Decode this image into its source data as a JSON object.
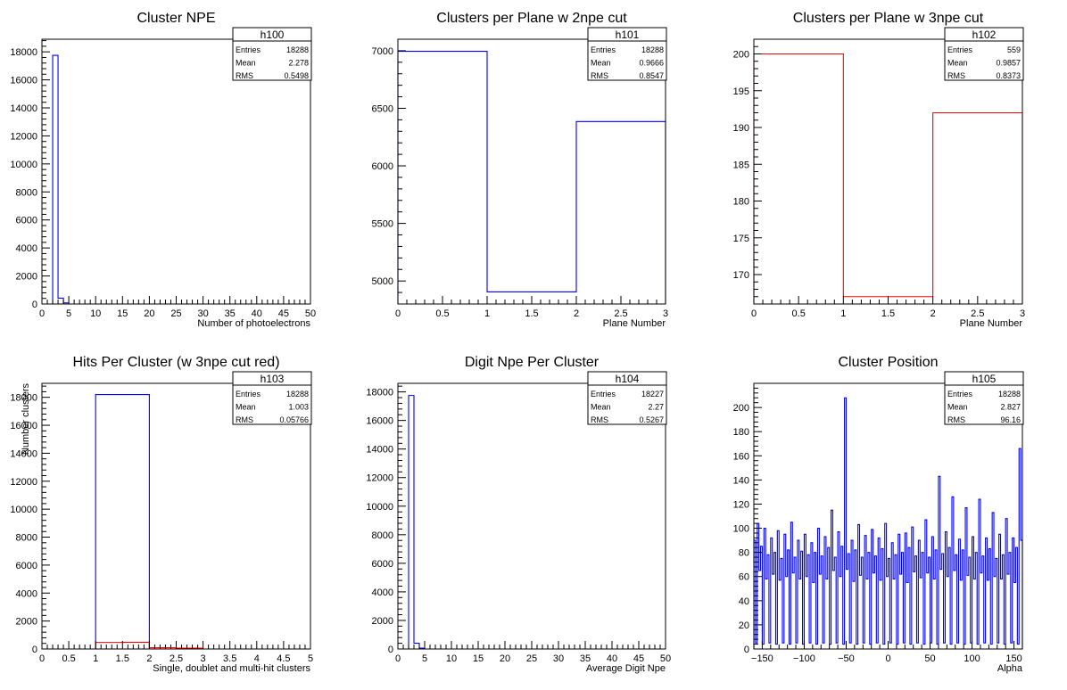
{
  "chart_data": [
    {
      "type": "bar",
      "name": "h100",
      "title": "Cluster NPE",
      "xlabel": "Number of photoelectrons",
      "ylabel": "",
      "xlim": [
        0,
        50
      ],
      "ylim": [
        0,
        18900
      ],
      "xticks": [
        0,
        5,
        10,
        15,
        20,
        25,
        30,
        35,
        40,
        45,
        50
      ],
      "xtick_labels": [
        "0",
        "5",
        "10",
        "15",
        "20",
        "25",
        "30",
        "35",
        "40",
        "45",
        "50"
      ],
      "yticks": [
        0,
        2000,
        4000,
        6000,
        8000,
        10000,
        12000,
        14000,
        16000,
        18000
      ],
      "ytick_labels": [
        "0",
        "2000",
        "4000",
        "6000",
        "8000",
        "10000",
        "12000",
        "14000",
        "16000",
        "18000"
      ],
      "stats": [
        {
          "label": "Entries",
          "value": "18288"
        },
        {
          "label": "Mean",
          "value": "2.278"
        },
        {
          "label": "RMS",
          "value": "0.5498"
        }
      ],
      "series": [
        {
          "color": "#0000ff",
          "bin_edges": [
            0,
            2,
            3,
            4,
            5,
            50
          ],
          "values": [
            0,
            17750,
            420,
            80,
            0
          ]
        }
      ]
    },
    {
      "type": "bar",
      "name": "h101",
      "title": "Clusters per Plane w 2npe cut",
      "xlabel": "Plane Number",
      "ylabel": "",
      "xlim": [
        0,
        3
      ],
      "ylim": [
        4800,
        7100
      ],
      "xticks": [
        0,
        0.5,
        1,
        1.5,
        2,
        2.5,
        3
      ],
      "xtick_labels": [
        "0",
        "0.5",
        "1",
        "1.5",
        "2",
        "2.5",
        "3"
      ],
      "yticks": [
        5000,
        5500,
        6000,
        6500,
        7000
      ],
      "ytick_labels": [
        "5000",
        "5500",
        "6000",
        "6500",
        "7000"
      ],
      "stats": [
        {
          "label": "Entries",
          "value": "18288"
        },
        {
          "label": "Mean",
          "value": "0.9666"
        },
        {
          "label": "RMS",
          "value": "0.8547"
        }
      ],
      "series": [
        {
          "color": "#0000ff",
          "bin_edges": [
            0,
            1,
            2,
            3
          ],
          "values": [
            6995,
            4905,
            6385
          ]
        }
      ]
    },
    {
      "type": "bar",
      "name": "h102",
      "title": "Clusters per Plane w 3npe cut",
      "xlabel": "Plane Number",
      "ylabel": "",
      "xlim": [
        0,
        3
      ],
      "ylim": [
        166,
        202
      ],
      "xticks": [
        0,
        0.5,
        1,
        1.5,
        2,
        2.5,
        3
      ],
      "xtick_labels": [
        "0",
        "0.5",
        "1",
        "1.5",
        "2",
        "2.5",
        "3"
      ],
      "yticks": [
        170,
        175,
        180,
        185,
        190,
        195,
        200
      ],
      "ytick_labels": [
        "170",
        "175",
        "180",
        "185",
        "190",
        "195",
        "200"
      ],
      "stats": [
        {
          "label": "Entries",
          "value": "559"
        },
        {
          "label": "Mean",
          "value": "0.9857"
        },
        {
          "label": "RMS",
          "value": "0.8373"
        }
      ],
      "series": [
        {
          "color": "#ff0000",
          "bin_edges": [
            0,
            1,
            2,
            3
          ],
          "values": [
            200,
            167,
            192
          ]
        }
      ]
    },
    {
      "type": "bar",
      "name": "h103",
      "title": "Hits Per Cluster (w 3npe cut red)",
      "xlabel": "Single, doublet and multi-hit clusters",
      "ylabel": "Number clusters",
      "xlim": [
        0,
        5
      ],
      "ylim": [
        0,
        19000
      ],
      "xticks": [
        0,
        0.5,
        1,
        1.5,
        2,
        2.5,
        3,
        3.5,
        4,
        4.5,
        5
      ],
      "xtick_labels": [
        "0",
        "0.5",
        "1",
        "1.5",
        "2",
        "2.5",
        "3",
        "3.5",
        "4",
        "4.5",
        "5"
      ],
      "yticks": [
        0,
        2000,
        4000,
        6000,
        8000,
        10000,
        12000,
        14000,
        16000,
        18000
      ],
      "ytick_labels": [
        "0",
        "2000",
        "4000",
        "6000",
        "8000",
        "10000",
        "12000",
        "14000",
        "16000",
        "18000"
      ],
      "stats": [
        {
          "label": "Entries",
          "value": "18288"
        },
        {
          "label": "Mean",
          "value": "1.003"
        },
        {
          "label": "RMS",
          "value": "0.05766"
        }
      ],
      "series": [
        {
          "color": "#0000ff",
          "bin_edges": [
            0,
            1,
            2,
            5
          ],
          "values": [
            0,
            18200,
            0
          ]
        },
        {
          "color": "#ff0000",
          "bin_edges": [
            0,
            1,
            1.5,
            2,
            2.5,
            3,
            5
          ],
          "values": [
            0,
            470,
            480,
            90,
            60,
            0
          ]
        }
      ]
    },
    {
      "type": "bar",
      "name": "h104",
      "title": "Digit Npe Per Cluster",
      "xlabel": "Average Digit Npe",
      "ylabel": "",
      "xlim": [
        0,
        50
      ],
      "ylim": [
        0,
        18600
      ],
      "xticks": [
        0,
        5,
        10,
        15,
        20,
        25,
        30,
        35,
        40,
        45,
        50
      ],
      "xtick_labels": [
        "0",
        "5",
        "10",
        "15",
        "20",
        "25",
        "30",
        "35",
        "40",
        "45",
        "50"
      ],
      "yticks": [
        0,
        2000,
        4000,
        6000,
        8000,
        10000,
        12000,
        14000,
        16000,
        18000
      ],
      "ytick_labels": [
        "0",
        "2000",
        "4000",
        "6000",
        "8000",
        "10000",
        "12000",
        "14000",
        "16000",
        "18000"
      ],
      "stats": [
        {
          "label": "Entries",
          "value": "18227"
        },
        {
          "label": "Mean",
          "value": "2.27"
        },
        {
          "label": "RMS",
          "value": "0.5267"
        }
      ],
      "series": [
        {
          "color": "#0000ff",
          "bin_edges": [
            0,
            2,
            3,
            4,
            5,
            50
          ],
          "values": [
            0,
            17750,
            400,
            60,
            0
          ]
        }
      ]
    },
    {
      "type": "bar",
      "name": "h105",
      "title": "Cluster Position",
      "xlabel": "Alpha",
      "ylabel": "",
      "xlim": [
        -160,
        160
      ],
      "ylim": [
        0,
        220
      ],
      "xticks": [
        -150,
        -100,
        -50,
        0,
        50,
        100,
        150
      ],
      "xtick_labels": [
        "−150",
        "−100",
        "−50",
        "0",
        "50",
        "100",
        "150"
      ],
      "yticks": [
        0,
        20,
        40,
        60,
        80,
        100,
        120,
        140,
        160,
        180,
        200
      ],
      "ytick_labels": [
        "0",
        "20",
        "40",
        "60",
        "80",
        "100",
        "120",
        "140",
        "160",
        "180",
        "200"
      ],
      "stats": [
        {
          "label": "Entries",
          "value": "18288"
        },
        {
          "label": "Mean",
          "value": "2.827"
        },
        {
          "label": "RMS",
          "value": "96.16"
        }
      ],
      "series": [
        {
          "color": "#0000ff",
          "x_start": -160,
          "bin_width": 2,
          "values": [
            90,
            5,
            104,
            65,
            85,
            4,
            100,
            58,
            78,
            5,
            92,
            62,
            80,
            4,
            98,
            57,
            75,
            5,
            95,
            60,
            82,
            4,
            105,
            63,
            76,
            5,
            90,
            58,
            81,
            4,
            95,
            60,
            78,
            5,
            88,
            55,
            80,
            4,
            100,
            62,
            77,
            5,
            93,
            58,
            84,
            4,
            115,
            65,
            76,
            5,
            97,
            60,
            85,
            4,
            208,
            66,
            79,
            5,
            90,
            56,
            82,
            4,
            103,
            61,
            76,
            5,
            94,
            58,
            80,
            4,
            99,
            63,
            77,
            5,
            92,
            57,
            83,
            4,
            104,
            60,
            75,
            5,
            88,
            58,
            78,
            4,
            95,
            62,
            80,
            5,
            96,
            55,
            84,
            4,
            101,
            64,
            77,
            5,
            90,
            59,
            80,
            4,
            107,
            63,
            76,
            5,
            93,
            58,
            82,
            4,
            143,
            66,
            79,
            5,
            97,
            60,
            84,
            4,
            126,
            65,
            78,
            5,
            91,
            57,
            82,
            4,
            117,
            61,
            76,
            5,
            93,
            58,
            80,
            4,
            124,
            63,
            77,
            5,
            92,
            57,
            83,
            4,
            113,
            60,
            75,
            5,
            95,
            58,
            78,
            4,
            108,
            62,
            80,
            5,
            92,
            55,
            84,
            4,
            166,
            90
          ]
        }
      ]
    }
  ]
}
